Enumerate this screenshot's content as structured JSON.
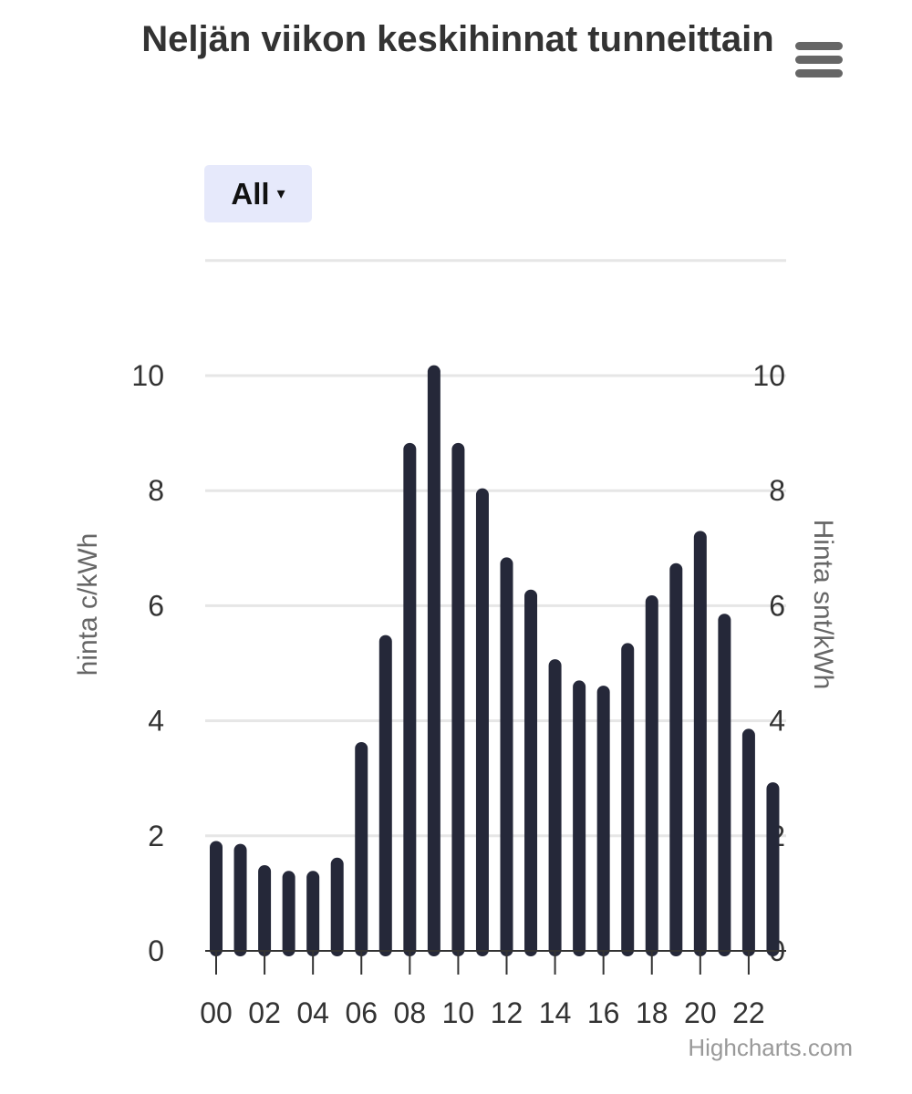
{
  "chart_data": {
    "type": "bar",
    "title": "Neljän viikon keskihinnat tunneittain",
    "categories": [
      "00",
      "01",
      "02",
      "03",
      "04",
      "05",
      "06",
      "07",
      "08",
      "09",
      "10",
      "11",
      "12",
      "13",
      "14",
      "15",
      "16",
      "17",
      "18",
      "19",
      "20",
      "21",
      "22",
      "23"
    ],
    "x_tick_labels": [
      "00",
      "02",
      "04",
      "06",
      "08",
      "10",
      "12",
      "14",
      "16",
      "18",
      "20",
      "22"
    ],
    "values": [
      1.91,
      1.86,
      1.49,
      1.39,
      1.39,
      1.62,
      3.63,
      5.49,
      8.83,
      10.18,
      8.83,
      8.04,
      6.84,
      6.28,
      5.07,
      4.7,
      4.61,
      5.35,
      6.18,
      6.74,
      7.3,
      5.86,
      3.86,
      2.93
    ],
    "ylabel": "hinta c/kWh",
    "ylabel_right": "Hinta snt/kWh",
    "y_tick_labels": [
      "0",
      "2",
      "4",
      "6",
      "8",
      "10"
    ],
    "ylim": [
      0,
      12
    ],
    "grid": true,
    "bar_color": "#252839"
  },
  "filter": {
    "label": "All",
    "arrow": "▾"
  },
  "menu_icon": "hamburger-menu-icon",
  "credits": "Highcharts.com"
}
